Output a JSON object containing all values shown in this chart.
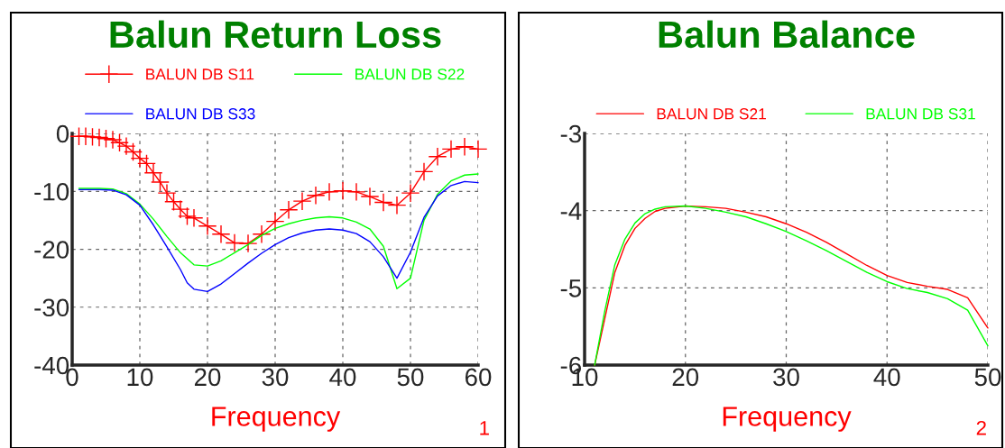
{
  "chart_data": [
    {
      "type": "line",
      "title": "Balun Return Loss",
      "xlabel": "Frequency",
      "annotations": [
        "1"
      ],
      "xlim": [
        0,
        60
      ],
      "xticks": [
        0,
        10,
        20,
        30,
        40,
        50,
        60
      ],
      "ylim": [
        -40,
        0
      ],
      "yticks": [
        -40,
        -30,
        -20,
        -10,
        0
      ],
      "grid": true,
      "legend": "top",
      "series": [
        {
          "name": "BALUN DB S11",
          "color": "#ff0000",
          "marker": "cross",
          "x": [
            1,
            2,
            3,
            4,
            5,
            6,
            7,
            8,
            9,
            10,
            11,
            12,
            13,
            14,
            15,
            16,
            17,
            18,
            20,
            22,
            24,
            26,
            28,
            30,
            32,
            34,
            36,
            38,
            40,
            42,
            44,
            46,
            48,
            50,
            52,
            54,
            56,
            58,
            60
          ],
          "values": [
            -0.5,
            -0.5,
            -0.6,
            -0.7,
            -0.9,
            -1.1,
            -1.6,
            -2.2,
            -3.2,
            -4.3,
            -5.2,
            -6.8,
            -8.4,
            -10.3,
            -11.8,
            -13.1,
            -14.3,
            -14.6,
            -16.0,
            -17.4,
            -18.9,
            -19.0,
            -17.4,
            -15.2,
            -13.2,
            -11.7,
            -10.7,
            -10.1,
            -9.9,
            -10.1,
            -10.9,
            -11.9,
            -12.4,
            -10.3,
            -6.6,
            -4.0,
            -2.7,
            -2.3,
            -2.7
          ]
        },
        {
          "name": "BALUN DB S22",
          "color": "#00ff00",
          "x": [
            1,
            4,
            6,
            8,
            10,
            12,
            14,
            16,
            18,
            20,
            22,
            24,
            26,
            28,
            30,
            32,
            34,
            36,
            38,
            40,
            42,
            44,
            46,
            48,
            50,
            52,
            54,
            56,
            58,
            60
          ],
          "values": [
            -9.5,
            -9.5,
            -9.6,
            -10.4,
            -12.2,
            -14.8,
            -17.8,
            -20.6,
            -22.7,
            -22.9,
            -22.0,
            -20.6,
            -19.2,
            -17.6,
            -16.4,
            -15.6,
            -15.0,
            -14.6,
            -14.4,
            -14.6,
            -15.3,
            -16.5,
            -19.5,
            -26.8,
            -25.0,
            -15.0,
            -10.5,
            -8.2,
            -7.2,
            -7.0
          ]
        },
        {
          "name": "BALUN DB S33",
          "color": "#0000ff",
          "x": [
            1,
            4,
            6,
            8,
            10,
            12,
            14,
            16,
            17,
            18,
            20,
            22,
            24,
            26,
            28,
            30,
            32,
            34,
            36,
            38,
            40,
            42,
            44,
            46,
            48,
            50,
            52,
            54,
            56,
            58,
            60
          ],
          "values": [
            -9.7,
            -9.7,
            -9.8,
            -10.6,
            -12.4,
            -15.8,
            -19.6,
            -23.5,
            -25.8,
            -26.9,
            -27.3,
            -26.0,
            -24.2,
            -22.4,
            -20.7,
            -19.2,
            -18.0,
            -17.2,
            -16.7,
            -16.5,
            -16.7,
            -17.3,
            -18.7,
            -21.3,
            -25.0,
            -20.5,
            -14.5,
            -10.8,
            -9.0,
            -8.3,
            -8.5
          ]
        }
      ]
    },
    {
      "type": "line",
      "title": "Balun Balance",
      "xlabel": "Frequency",
      "annotations": [
        "2"
      ],
      "xlim": [
        10,
        50
      ],
      "xticks": [
        10,
        20,
        30,
        40,
        50
      ],
      "ylim": [
        -6,
        -3
      ],
      "yticks": [
        -6,
        -5,
        -4,
        -3
      ],
      "grid": true,
      "legend": "top",
      "series": [
        {
          "name": "BALUN DB S21",
          "color": "#ff0000",
          "x": [
            11,
            12,
            13,
            14,
            15,
            16,
            17,
            18,
            20,
            22,
            24,
            26,
            28,
            30,
            32,
            34,
            36,
            38,
            40,
            42,
            44,
            46,
            48,
            50
          ],
          "values": [
            -6.0,
            -5.4,
            -4.8,
            -4.45,
            -4.23,
            -4.1,
            -4.01,
            -3.97,
            -3.94,
            -3.95,
            -3.97,
            -4.02,
            -4.08,
            -4.17,
            -4.28,
            -4.41,
            -4.56,
            -4.71,
            -4.84,
            -4.93,
            -4.98,
            -5.02,
            -5.13,
            -5.52
          ]
        },
        {
          "name": "BALUN DB S31",
          "color": "#00ff00",
          "x": [
            11,
            12,
            13,
            14,
            15,
            16,
            17,
            18,
            20,
            22,
            24,
            26,
            28,
            30,
            32,
            34,
            36,
            38,
            40,
            42,
            44,
            46,
            48,
            50
          ],
          "values": [
            -6.0,
            -5.3,
            -4.7,
            -4.37,
            -4.16,
            -4.04,
            -3.98,
            -3.95,
            -3.94,
            -3.97,
            -4.02,
            -4.08,
            -4.17,
            -4.27,
            -4.39,
            -4.52,
            -4.66,
            -4.8,
            -4.92,
            -5.01,
            -5.06,
            -5.14,
            -5.29,
            -5.75
          ]
        }
      ]
    }
  ]
}
